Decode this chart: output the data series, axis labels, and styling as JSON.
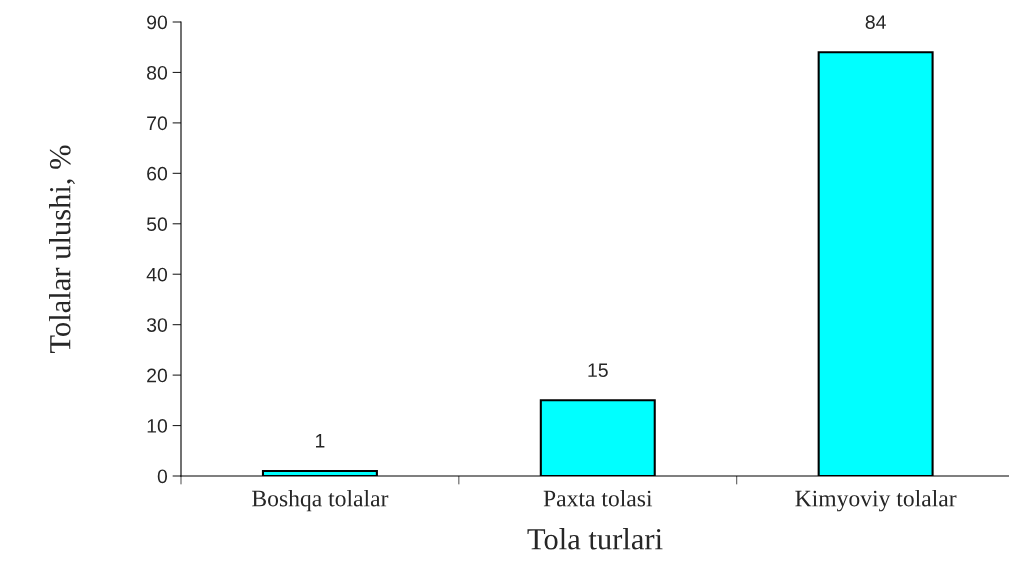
{
  "chart_data": {
    "type": "bar",
    "xlabel": "Tola turlari",
    "ylabel": "Tolalar ulushi, %",
    "categories": [
      "Boshqa tolalar",
      "Paxta tolasi",
      "Kimyoviy tolalar"
    ],
    "values": [
      1,
      15,
      84
    ],
    "color": "#00ffff",
    "ylim": [
      0,
      90
    ],
    "yticks": [
      0,
      10,
      20,
      30,
      40,
      50,
      60,
      70,
      80,
      90
    ],
    "data_labels": true,
    "grid": false,
    "legend": false
  }
}
